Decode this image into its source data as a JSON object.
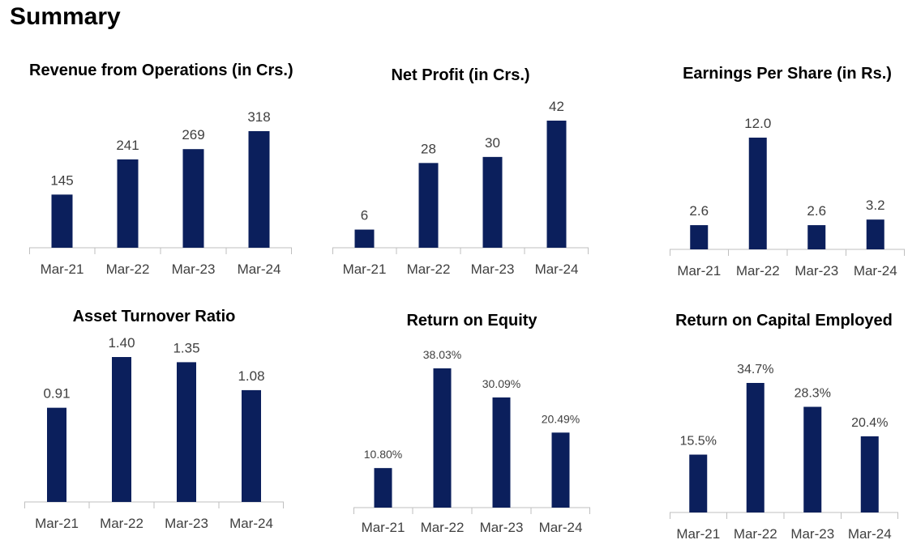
{
  "page": {
    "title": "Summary"
  },
  "colors": {
    "bar": "#0b1f5c",
    "axis": "#bfbfbf",
    "label": "#404040"
  },
  "chart_data": [
    {
      "type": "bar",
      "title": "Revenue from Operations (in Crs.)",
      "categories": [
        "Mar-21",
        "Mar-22",
        "Mar-23",
        "Mar-24"
      ],
      "values": [
        145,
        241,
        269,
        318
      ],
      "value_labels": [
        "145",
        "241",
        "269",
        "318"
      ]
    },
    {
      "type": "bar",
      "title": "Net Profit (in Crs.)",
      "categories": [
        "Mar-21",
        "Mar-22",
        "Mar-23",
        "Mar-24"
      ],
      "values": [
        6,
        28,
        30,
        42
      ],
      "value_labels": [
        "6",
        "28",
        "30",
        "42"
      ]
    },
    {
      "type": "bar",
      "title": "Earnings Per Share (in Rs.)",
      "categories": [
        "Mar-21",
        "Mar-22",
        "Mar-23",
        "Mar-24"
      ],
      "values": [
        2.6,
        12.0,
        2.6,
        3.2
      ],
      "value_labels": [
        "2.6",
        "12.0",
        "2.6",
        "3.2"
      ]
    },
    {
      "type": "bar",
      "title": "Asset Turnover Ratio",
      "categories": [
        "Mar-21",
        "Mar-22",
        "Mar-23",
        "Mar-24"
      ],
      "values": [
        0.91,
        1.4,
        1.35,
        1.08
      ],
      "value_labels": [
        "0.91",
        "1.40",
        "1.35",
        "1.08"
      ]
    },
    {
      "type": "bar",
      "title": "Return on Equity",
      "categories": [
        "Mar-21",
        "Mar-22",
        "Mar-23",
        "Mar-24"
      ],
      "values": [
        10.8,
        38.03,
        30.09,
        20.49
      ],
      "value_labels": [
        "10.80%",
        "38.03%",
        "30.09%",
        "20.49%"
      ]
    },
    {
      "type": "bar",
      "title": "Return on Capital Employed",
      "categories": [
        "Mar-21",
        "Mar-22",
        "Mar-23",
        "Mar-24"
      ],
      "values": [
        15.5,
        34.7,
        28.3,
        20.4
      ],
      "value_labels": [
        "15.5%",
        "34.7%",
        "28.3%",
        "20.4%"
      ]
    }
  ]
}
